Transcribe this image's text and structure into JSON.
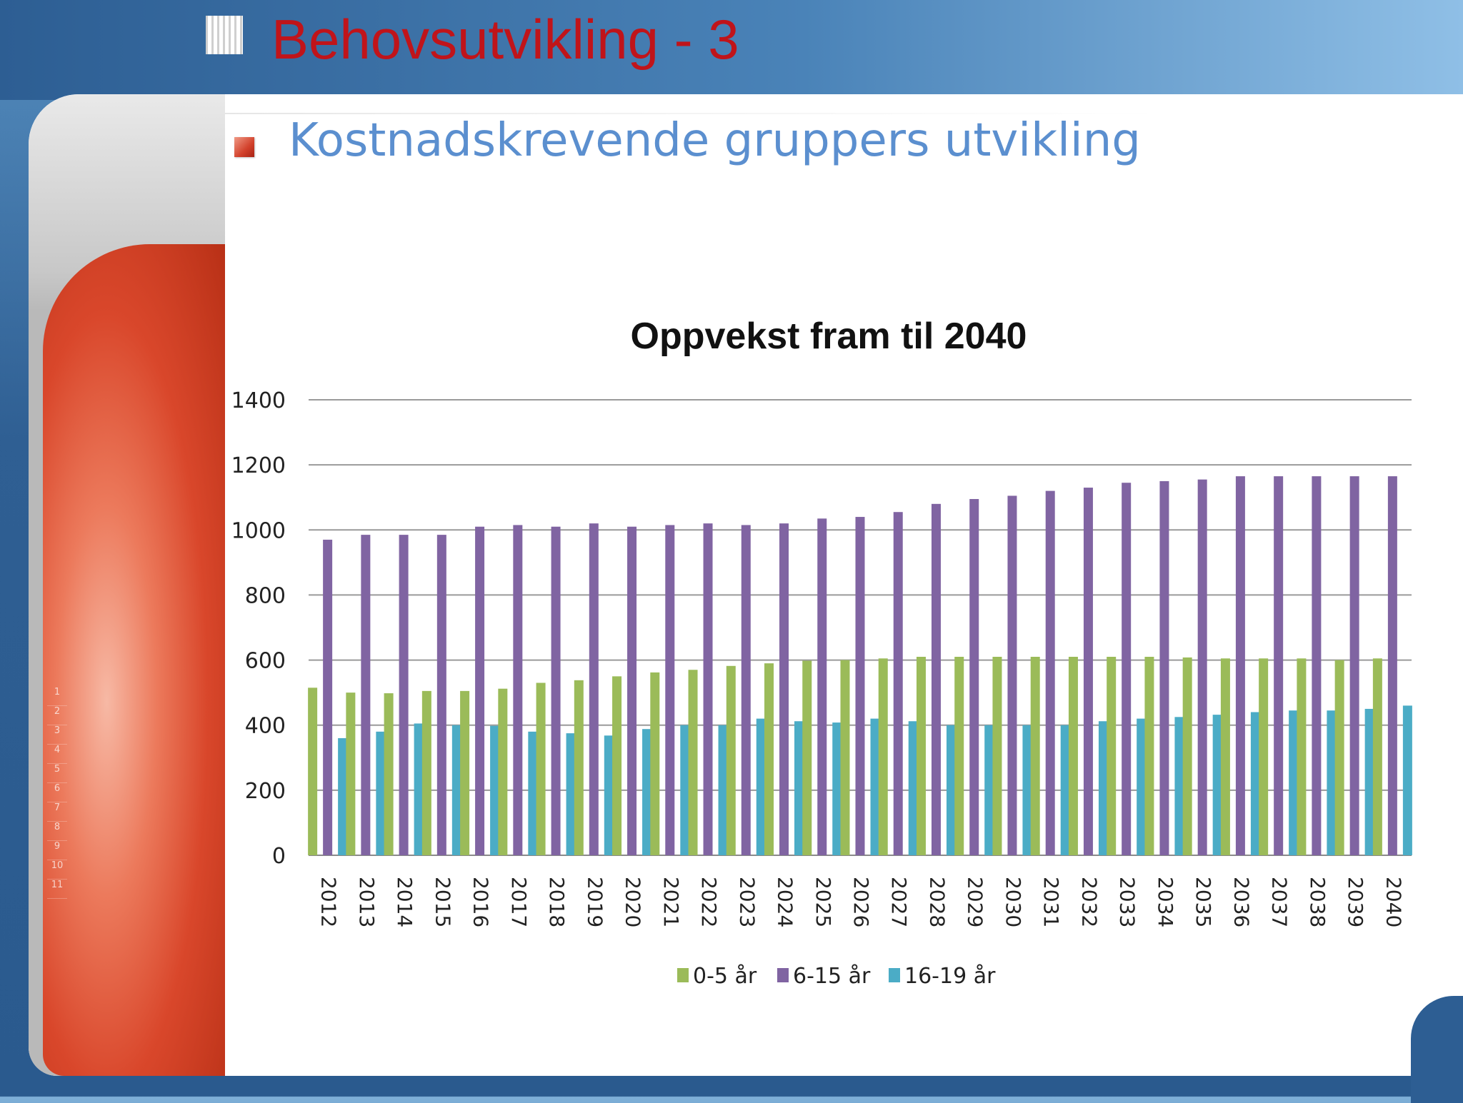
{
  "slide": {
    "title": "Behovsutvikling - 3",
    "bullet": "Kostnadskrevende gruppers utvikling",
    "sidebar_row_numbers": [
      "1",
      "2",
      "3",
      "4",
      "5",
      "6",
      "7",
      "8",
      "9",
      "10",
      "11"
    ]
  },
  "colors": {
    "title": "#c0141a",
    "subtitle": "#5b8fcf",
    "series": [
      "#9bbb59",
      "#8064a2",
      "#4bacc6"
    ]
  },
  "chart_data": {
    "type": "bar",
    "title": "Oppvekst fram til 2040",
    "xlabel": "",
    "ylabel": "",
    "ylim": [
      0,
      1400
    ],
    "yticks": [
      0,
      200,
      400,
      600,
      800,
      1000,
      1200,
      1400
    ],
    "grid": true,
    "legend": "bottom",
    "categories": [
      "2012",
      "2013",
      "2014",
      "2015",
      "2016",
      "2017",
      "2018",
      "2019",
      "2020",
      "2021",
      "2022",
      "2023",
      "2024",
      "2025",
      "2026",
      "2027",
      "2028",
      "2029",
      "2030",
      "2031",
      "2032",
      "2033",
      "2034",
      "2035",
      "2036",
      "2037",
      "2038",
      "2039",
      "2040"
    ],
    "series": [
      {
        "name": "0-5 år",
        "values": [
          515,
          500,
          498,
          505,
          505,
          512,
          530,
          538,
          550,
          562,
          570,
          582,
          590,
          598,
          600,
          605,
          610,
          610,
          610,
          610,
          610,
          610,
          610,
          608,
          605,
          605,
          605,
          600,
          605
        ]
      },
      {
        "name": "6-15 år",
        "values": [
          970,
          985,
          985,
          985,
          1010,
          1015,
          1010,
          1020,
          1010,
          1015,
          1020,
          1015,
          1020,
          1035,
          1040,
          1055,
          1080,
          1095,
          1105,
          1120,
          1130,
          1145,
          1150,
          1155,
          1165,
          1165,
          1165,
          1165,
          1165
        ]
      },
      {
        "name": "16-19 år",
        "values": [
          360,
          380,
          405,
          400,
          398,
          380,
          375,
          368,
          388,
          400,
          400,
          420,
          412,
          408,
          420,
          412,
          400,
          400,
          400,
          400,
          412,
          420,
          425,
          432,
          440,
          445,
          445,
          450,
          460
        ]
      }
    ]
  }
}
